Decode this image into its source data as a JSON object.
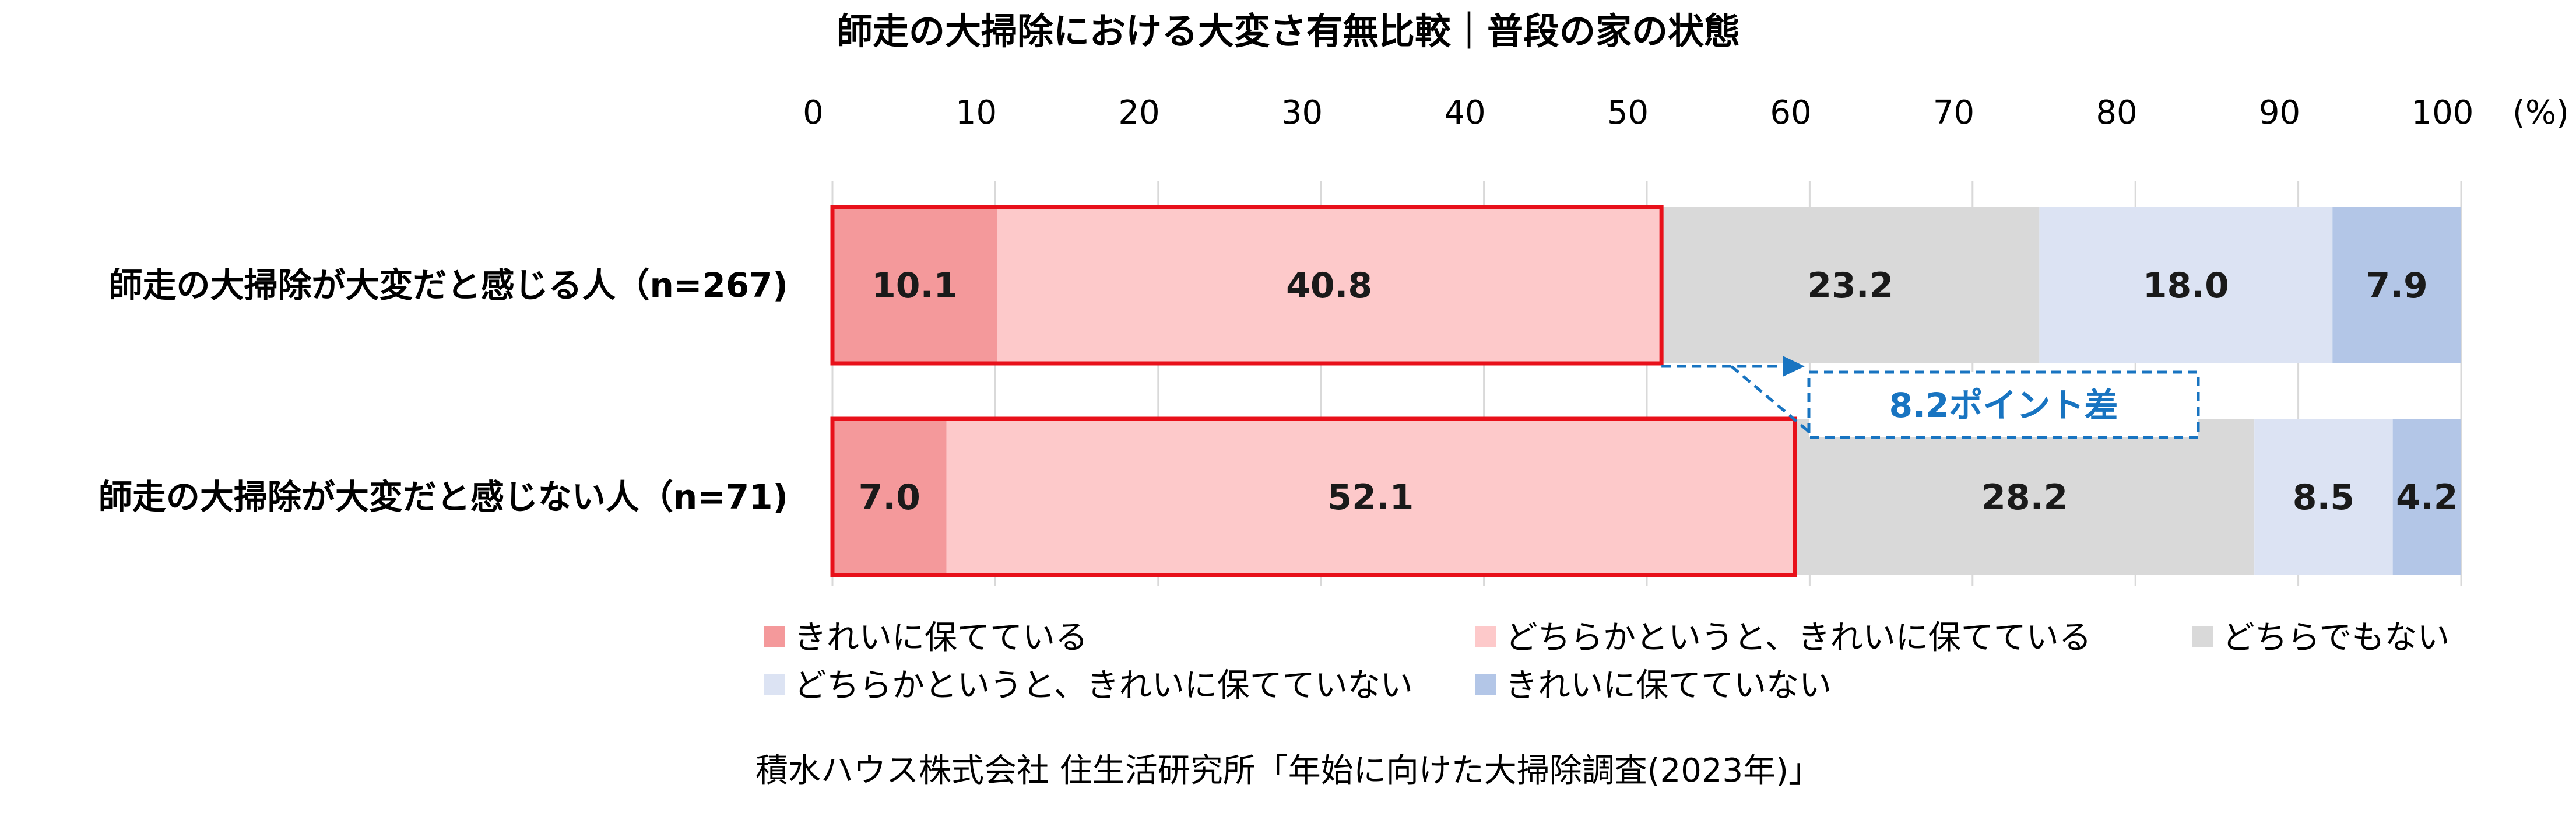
{
  "chart_data": {
    "type": "bar",
    "orientation": "horizontal",
    "stacked": true,
    "title": "師走の大掃除における大変さ有無比較｜普段の家の状態",
    "unit_label": "(%)",
    "xlim": [
      0,
      100
    ],
    "xticks": [
      "0",
      "10",
      "20",
      "30",
      "40",
      "50",
      "60",
      "70",
      "80",
      "90",
      "100"
    ],
    "grid": true,
    "categories": [
      "師走の大掃除が大変だと感じる人（n=267)",
      "師走の大掃除が大変だと感じない人（n=71)"
    ],
    "series": [
      {
        "name": "きれいに保てている",
        "color": "#f4999b",
        "values": [
          10.1,
          7.0
        ],
        "labels": [
          "10.1",
          "7.0"
        ]
      },
      {
        "name": "どちらかというと、きれいに保てている",
        "color": "#fdc9ca",
        "values": [
          40.8,
          52.1
        ],
        "labels": [
          "40.8",
          "52.1"
        ]
      },
      {
        "name": "どちらでもない",
        "color": "#d9d9d9",
        "values": [
          23.2,
          28.2
        ],
        "labels": [
          "23.2",
          "28.2"
        ]
      },
      {
        "name": "どちらかというと、きれいに保てていない",
        "color": "#dce3f3",
        "values": [
          18.0,
          8.5
        ],
        "labels": [
          "18.0",
          "8.5"
        ]
      },
      {
        "name": "きれいに保てていない",
        "color": "#b3c6e7",
        "values": [
          7.9,
          4.2
        ],
        "labels": [
          "7.9",
          "4.2"
        ]
      }
    ],
    "highlight_color": "#e8101a",
    "annotation": {
      "text": "8.2ポイント差",
      "color": "#1874c1",
      "from_value": 50.9,
      "to_value": 59.1
    },
    "legend_position": "bottom",
    "source": "積水ハウス株式会社 住生活研究所「年始に向けた大掃除調査(2023年)」"
  }
}
